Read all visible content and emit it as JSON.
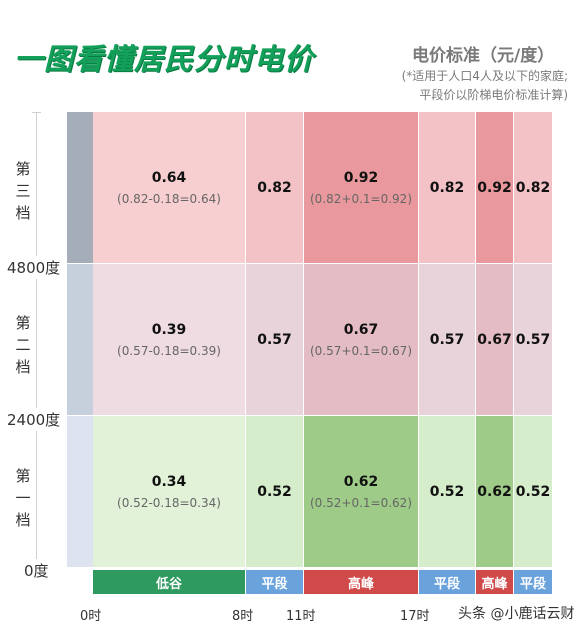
{
  "title": "一图看懂居民分时电价",
  "unit": {
    "title": "电价标准（元/度）",
    "note_line1": "(*适用于人口4人及以下的家庭;",
    "note_line2": "平段价以阶梯电价标准计算)"
  },
  "tiers": {
    "third": "第三档",
    "second": "第二档",
    "first": "第一档"
  },
  "bounds": [
    "4800度",
    "2400度",
    "0度"
  ],
  "rows": {
    "tier3": {
      "valley_price": "0.64",
      "valley_formula": "(0.82-0.18=0.64)",
      "flat1": "0.82",
      "peak_price": "0.92",
      "peak_formula": "(0.82+0.1=0.92)",
      "flat2": "0.82",
      "peak2": "0.92",
      "flat3": "0.82"
    },
    "tier2": {
      "valley_price": "0.39",
      "valley_formula": "(0.57-0.18=0.39)",
      "flat1": "0.57",
      "peak_price": "0.67",
      "peak_formula": "(0.57+0.1=0.67)",
      "flat2": "0.57",
      "peak2": "0.67",
      "flat3": "0.57"
    },
    "tier1": {
      "valley_price": "0.34",
      "valley_formula": "(0.52-0.18=0.34)",
      "flat1": "0.52",
      "peak_price": "0.62",
      "peak_formula": "(0.52+0.1=0.62)",
      "flat2": "0.52",
      "peak2": "0.62",
      "flat3": "0.52"
    }
  },
  "segments": {
    "valley": "低谷",
    "flat1": "平段",
    "peak1": "高峰",
    "flat2": "平段",
    "peak2": "高峰",
    "flat3": "平段"
  },
  "times": [
    "0时",
    "8时",
    "11时",
    "17时"
  ],
  "watermark": "头条 @小鹿话云财",
  "colors": {
    "title": "#12a05a",
    "valley": "#2e9a5f",
    "flat": "#6aa3dc",
    "peak": "#d04a4a"
  }
}
